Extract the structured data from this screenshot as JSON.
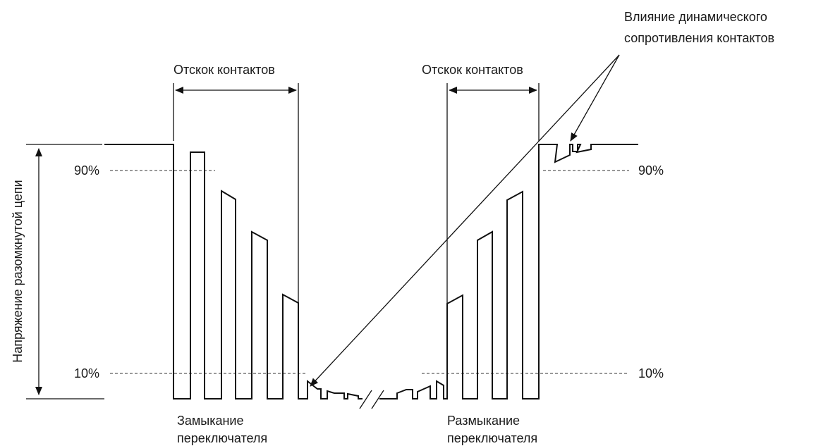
{
  "annotation": {
    "influence_line1": "Влияние динамического",
    "influence_line2": "сопротивления контактов"
  },
  "bounce": {
    "left_label": "Отскок контактов",
    "right_label": "Отскок контактов"
  },
  "thresholds": {
    "high_left": "90%",
    "high_right": "90%",
    "low_left": "10%",
    "low_right": "10%"
  },
  "axis": {
    "ylabel": "Напряжение разомкнутой цепи"
  },
  "events": {
    "closing_line1": "Замыкание",
    "closing_line2": "переключателя",
    "opening_line1": "Размыкание",
    "opening_line2": "переключателя"
  }
}
